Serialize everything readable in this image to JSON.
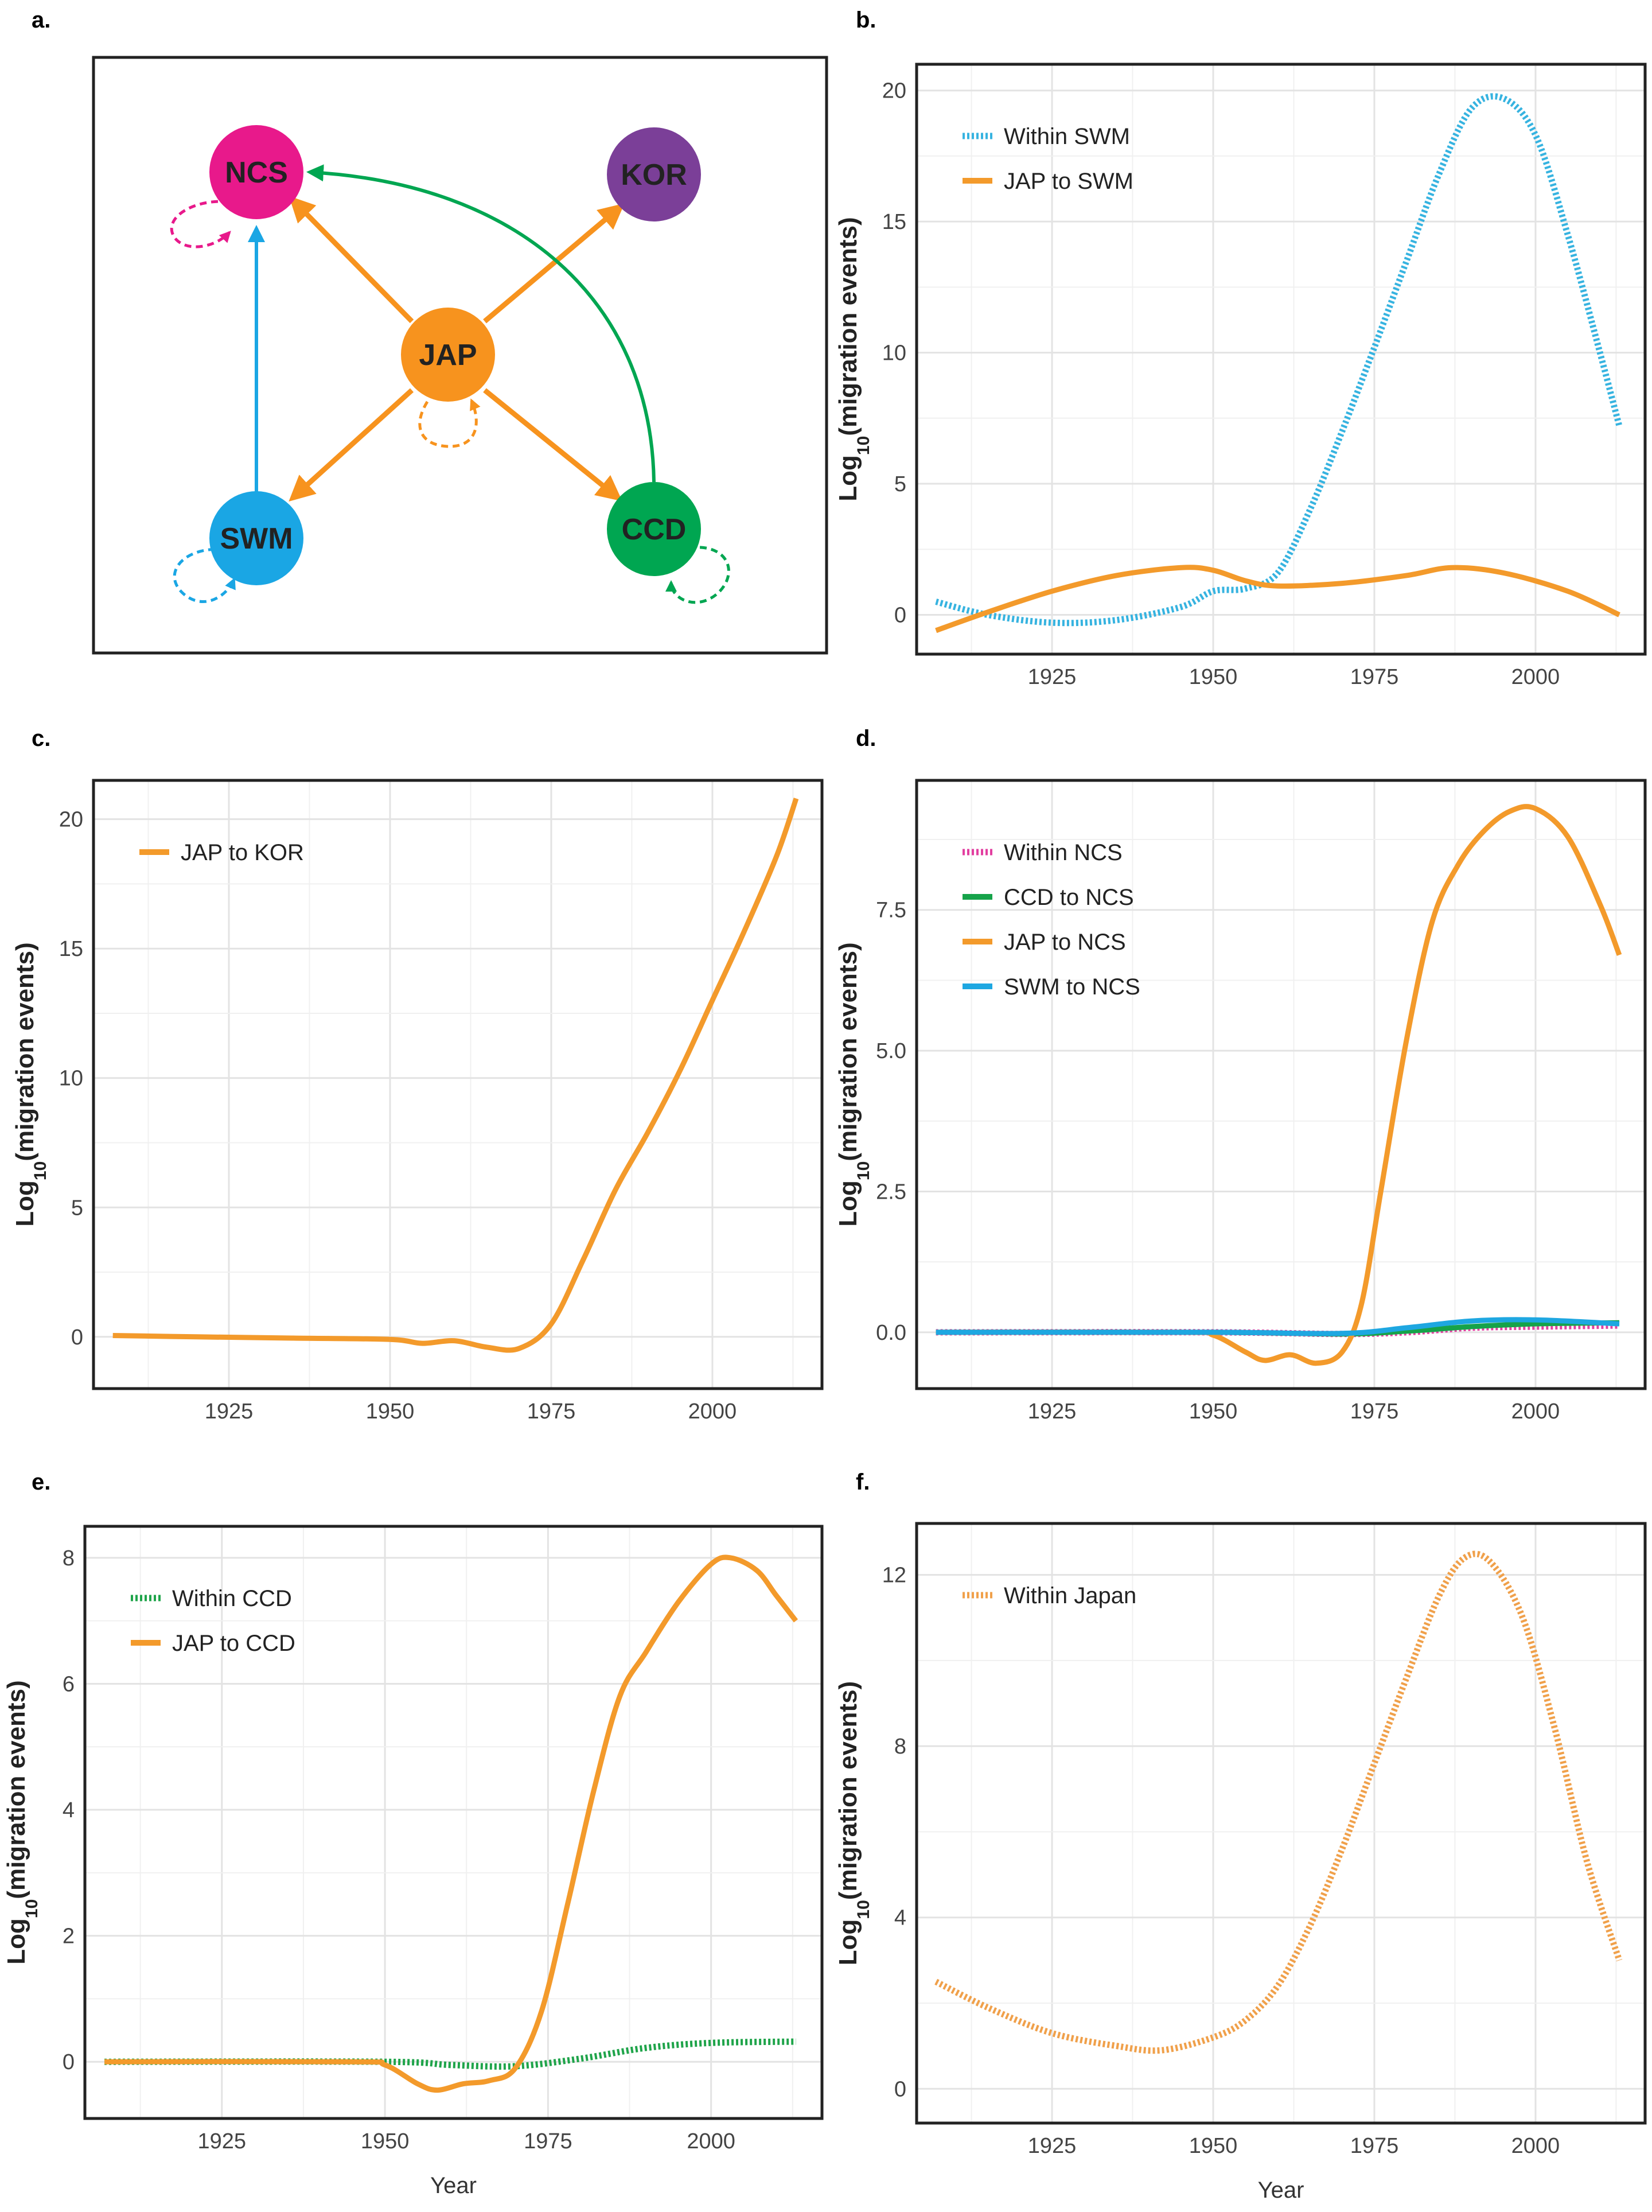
{
  "figure": {
    "panel_letters": [
      "a.",
      "b.",
      "c.",
      "d.",
      "e.",
      "f."
    ]
  },
  "network": {
    "nodes": [
      {
        "id": "NCS",
        "label": "NCS",
        "color": "#e8198b"
      },
      {
        "id": "KOR",
        "label": "KOR",
        "color": "#7b3f98"
      },
      {
        "id": "JAP",
        "label": "JAP",
        "color": "#f7931e"
      },
      {
        "id": "SWM",
        "label": "SWM",
        "color": "#1aa6e4"
      },
      {
        "id": "CCD",
        "label": "CCD",
        "color": "#00a651"
      }
    ],
    "edges": [
      {
        "from": "JAP",
        "to": "NCS",
        "style": "solid",
        "color": "#f7931e"
      },
      {
        "from": "JAP",
        "to": "KOR",
        "style": "solid",
        "color": "#f7931e"
      },
      {
        "from": "JAP",
        "to": "SWM",
        "style": "solid",
        "color": "#f7931e"
      },
      {
        "from": "JAP",
        "to": "CCD",
        "style": "solid",
        "color": "#f7931e"
      },
      {
        "from": "SWM",
        "to": "NCS",
        "style": "solid",
        "color": "#1aa6e4"
      },
      {
        "from": "CCD",
        "to": "NCS",
        "style": "curved",
        "color": "#00a651"
      },
      {
        "from": "NCS",
        "to": "NCS",
        "style": "dashed-loop",
        "color": "#e8198b"
      },
      {
        "from": "JAP",
        "to": "JAP",
        "style": "dashed-loop",
        "color": "#f7931e"
      },
      {
        "from": "SWM",
        "to": "SWM",
        "style": "dashed-loop",
        "color": "#1aa6e4"
      },
      {
        "from": "CCD",
        "to": "CCD",
        "style": "dashed-loop",
        "color": "#00a651"
      }
    ]
  },
  "chart_data": [
    {
      "panel": "b.",
      "type": "line",
      "xlabel": "",
      "ylabel": "Log",
      "ylabel_sub": "10",
      "ylabel_rest": "(migration events)",
      "xlim": [
        1904,
        2017
      ],
      "ylim": [
        -1.5,
        21
      ],
      "xticks": [
        1925,
        1950,
        1975,
        2000
      ],
      "yticks": [
        0,
        5,
        10,
        15,
        20
      ],
      "ytick_labels": [
        "0",
        "5",
        "10",
        "15",
        "20"
      ],
      "legend_position": "top-left",
      "series": [
        {
          "name": "Within SWM",
          "color": "#36b3e0",
          "style": "dotted",
          "x": [
            1907,
            1915,
            1925,
            1935,
            1945,
            1950,
            1955,
            1960,
            1965,
            1970,
            1975,
            1980,
            1985,
            1990,
            1995,
            2000,
            2005,
            2010,
            2013
          ],
          "y": [
            0.5,
            0,
            -0.3,
            -0.2,
            0.3,
            0.9,
            1.0,
            1.6,
            4.0,
            7.0,
            10.2,
            13.5,
            16.8,
            19.3,
            19.7,
            18.3,
            14.5,
            10.0,
            7.2
          ]
        },
        {
          "name": "JAP to SWM",
          "color": "#f39a2b",
          "style": "solid",
          "x": [
            1907,
            1915,
            1925,
            1935,
            1945,
            1950,
            1955,
            1960,
            1970,
            1980,
            1987,
            1995,
            2005,
            2013
          ],
          "y": [
            -0.6,
            0.1,
            0.9,
            1.5,
            1.8,
            1.7,
            1.3,
            1.1,
            1.2,
            1.5,
            1.8,
            1.6,
            0.9,
            0
          ]
        }
      ]
    },
    {
      "panel": "c.",
      "type": "line",
      "xlabel": "",
      "ylabel": "Log",
      "ylabel_sub": "10",
      "ylabel_rest": "(migration events)",
      "xlim": [
        1904,
        2017
      ],
      "ylim": [
        -2,
        21.5
      ],
      "xticks": [
        1925,
        1950,
        1975,
        2000
      ],
      "yticks": [
        0,
        5,
        10,
        15,
        20
      ],
      "ytick_labels": [
        "0",
        "5",
        "10",
        "15",
        "20"
      ],
      "legend_position": "top-left",
      "series": [
        {
          "name": "JAP to KOR",
          "color": "#f39a2b",
          "style": "solid",
          "x": [
            1907,
            1920,
            1935,
            1950,
            1955,
            1960,
            1965,
            1970,
            1975,
            1980,
            1985,
            1990,
            1995,
            2000,
            2005,
            2010,
            2013
          ],
          "y": [
            0.05,
            0,
            -0.05,
            -0.1,
            -0.25,
            -0.15,
            -0.4,
            -0.45,
            0.5,
            3.0,
            5.7,
            7.9,
            10.3,
            13.0,
            15.7,
            18.6,
            20.8
          ]
        }
      ]
    },
    {
      "panel": "d.",
      "type": "line",
      "xlabel": "",
      "ylabel": "Log",
      "ylabel_sub": "10",
      "ylabel_rest": "(migration events)",
      "xlim": [
        1904,
        2017
      ],
      "ylim": [
        -1,
        9.8
      ],
      "xticks": [
        1925,
        1950,
        1975,
        2000
      ],
      "yticks": [
        0,
        2.5,
        5,
        7.5
      ],
      "ytick_labels": [
        "0.0",
        "2.5",
        "5.0",
        "7.5"
      ],
      "legend_position": "top-left",
      "series": [
        {
          "name": "Within NCS",
          "color": "#e23fa0",
          "style": "dotted",
          "x": [
            1907,
            1950,
            1970,
            1980,
            1990,
            2000,
            2013
          ],
          "y": [
            0,
            0,
            -0.03,
            0.0,
            0.08,
            0.1,
            0.12
          ]
        },
        {
          "name": "CCD to NCS",
          "color": "#16a34a",
          "style": "solid",
          "x": [
            1907,
            1950,
            1970,
            1980,
            1990,
            2000,
            2013
          ],
          "y": [
            0,
            0,
            -0.03,
            0.02,
            0.1,
            0.15,
            0.17
          ]
        },
        {
          "name": "JAP to NCS",
          "color": "#f39a2b",
          "style": "solid",
          "x": [
            1907,
            1945,
            1950,
            1955,
            1958,
            1962,
            1966,
            1970,
            1973,
            1976,
            1980,
            1984,
            1988,
            1992,
            1996,
            2000,
            2005,
            2010,
            2013
          ],
          "y": [
            0,
            0,
            -0.05,
            -0.35,
            -0.5,
            -0.4,
            -0.55,
            -0.35,
            0.5,
            2.5,
            5.2,
            7.3,
            8.3,
            8.9,
            9.25,
            9.3,
            8.8,
            7.6,
            6.7
          ]
        },
        {
          "name": "SWM to NCS",
          "color": "#1ea7e1",
          "style": "solid",
          "x": [
            1907,
            1950,
            1970,
            1980,
            1990,
            2000,
            2013
          ],
          "y": [
            0,
            0,
            -0.02,
            0.08,
            0.2,
            0.22,
            0.15
          ]
        }
      ]
    },
    {
      "panel": "e.",
      "type": "line",
      "xlabel": "Year",
      "ylabel": "Log",
      "ylabel_sub": "10",
      "ylabel_rest": "(migration events)",
      "xlim": [
        1904,
        2017
      ],
      "ylim": [
        -0.9,
        8.5
      ],
      "xticks": [
        1925,
        1950,
        1975,
        2000
      ],
      "yticks": [
        0,
        2,
        4,
        6,
        8
      ],
      "ytick_labels": [
        "0",
        "2",
        "4",
        "6",
        "8"
      ],
      "legend_position": "top-left",
      "series": [
        {
          "name": "Within CCD",
          "color": "#1fa44a",
          "style": "dotted",
          "x": [
            1907,
            1950,
            1960,
            1970,
            1980,
            1990,
            2000,
            2013
          ],
          "y": [
            0,
            0,
            -0.05,
            -0.07,
            0.05,
            0.22,
            0.3,
            0.32
          ]
        },
        {
          "name": "JAP to CCD",
          "color": "#f39a2b",
          "style": "solid",
          "x": [
            1907,
            1945,
            1950,
            1955,
            1958,
            1962,
            1966,
            1970,
            1974,
            1978,
            1982,
            1986,
            1990,
            1995,
            2000,
            2003,
            2007,
            2010,
            2013
          ],
          "y": [
            0,
            0,
            -0.05,
            -0.35,
            -0.45,
            -0.35,
            -0.3,
            -0.1,
            0.8,
            2.5,
            4.3,
            5.8,
            6.5,
            7.3,
            7.9,
            8.0,
            7.8,
            7.4,
            7.0
          ]
        }
      ]
    },
    {
      "panel": "f.",
      "type": "line",
      "xlabel": "Year",
      "ylabel": "Log",
      "ylabel_sub": "10",
      "ylabel_rest": "(migration events)",
      "xlim": [
        1904,
        2017
      ],
      "ylim": [
        -0.8,
        13.2
      ],
      "xticks": [
        1925,
        1950,
        1975,
        2000
      ],
      "yticks": [
        0,
        4,
        8,
        12
      ],
      "ytick_labels": [
        "0",
        "4",
        "8",
        "12"
      ],
      "legend_position": "top-left",
      "series": [
        {
          "name": "Within Japan",
          "color": "#f0a04a",
          "style": "dotted",
          "x": [
            1907,
            1915,
            1925,
            1935,
            1942,
            1950,
            1955,
            1960,
            1965,
            1970,
            1975,
            1980,
            1985,
            1989,
            1993,
            1998,
            2003,
            2008,
            2013
          ],
          "y": [
            2.5,
            1.9,
            1.3,
            1.0,
            0.9,
            1.2,
            1.6,
            2.4,
            3.8,
            5.6,
            7.6,
            9.6,
            11.5,
            12.4,
            12.3,
            11.0,
            8.4,
            5.3,
            3.0
          ]
        }
      ]
    }
  ]
}
